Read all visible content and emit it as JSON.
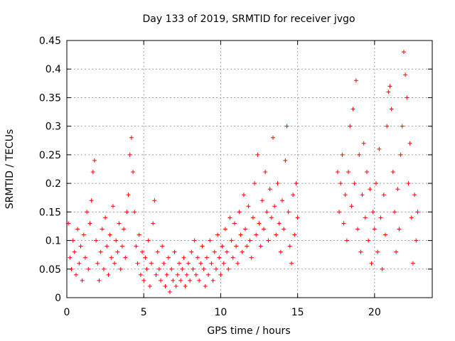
{
  "chart_data": {
    "type": "scatter",
    "title": "Day 133 of 2019, SRMTID for receiver jvgo",
    "xlabel": "GPS time / hours",
    "ylabel": "SRMTID / TECUs",
    "xlim": [
      0,
      23.75
    ],
    "ylim": [
      0,
      0.45
    ],
    "xticks": [
      0,
      5,
      10,
      15,
      20
    ],
    "yticks": [
      0,
      0.05,
      0.1,
      0.15,
      0.2,
      0.25,
      0.3,
      0.35,
      0.4,
      0.45
    ],
    "xtick_labels": [
      "0",
      "5",
      "10",
      "15",
      "20"
    ],
    "ytick_labels": [
      "0",
      "0.05",
      "0.1",
      "0.15",
      "0.2",
      "0.25",
      "0.3",
      "0.35",
      "0.4",
      "0.45"
    ],
    "grid": true,
    "marker": "+",
    "color": "#ff0000",
    "points": [
      [
        0.1,
        0.13
      ],
      [
        0.2,
        0.07
      ],
      [
        0.3,
        0.05
      ],
      [
        0.4,
        0.1
      ],
      [
        0.5,
        0.08
      ],
      [
        0.6,
        0.04
      ],
      [
        0.7,
        0.12
      ],
      [
        0.8,
        0.06
      ],
      [
        0.9,
        0.09
      ],
      [
        1.0,
        0.03
      ],
      [
        1.1,
        0.11
      ],
      [
        1.2,
        0.07
      ],
      [
        1.3,
        0.15
      ],
      [
        1.4,
        0.05
      ],
      [
        1.5,
        0.13
      ],
      [
        1.6,
        0.17
      ],
      [
        1.7,
        0.22
      ],
      [
        1.8,
        0.24
      ],
      [
        1.9,
        0.1
      ],
      [
        2.0,
        0.06
      ],
      [
        2.1,
        0.03
      ],
      [
        2.2,
        0.08
      ],
      [
        2.3,
        0.12
      ],
      [
        2.4,
        0.05
      ],
      [
        2.5,
        0.14
      ],
      [
        2.6,
        0.09
      ],
      [
        2.7,
        0.04
      ],
      [
        2.8,
        0.11
      ],
      [
        2.9,
        0.07
      ],
      [
        3.0,
        0.16
      ],
      [
        3.1,
        0.06
      ],
      [
        3.2,
        0.1
      ],
      [
        3.3,
        0.08
      ],
      [
        3.4,
        0.13
      ],
      [
        3.5,
        0.05
      ],
      [
        3.6,
        0.09
      ],
      [
        3.7,
        0.12
      ],
      [
        3.8,
        0.07
      ],
      [
        3.9,
        0.15
      ],
      [
        4.0,
        0.18
      ],
      [
        4.1,
        0.25
      ],
      [
        4.2,
        0.28
      ],
      [
        4.3,
        0.22
      ],
      [
        4.4,
        0.15
      ],
      [
        4.5,
        0.09
      ],
      [
        4.6,
        0.06
      ],
      [
        4.7,
        0.11
      ],
      [
        4.8,
        0.04
      ],
      [
        4.9,
        0.08
      ],
      [
        5.0,
        0.03
      ],
      [
        5.1,
        0.07
      ],
      [
        5.2,
        0.05
      ],
      [
        5.3,
        0.1
      ],
      [
        5.4,
        0.02
      ],
      [
        5.5,
        0.06
      ],
      [
        5.6,
        0.13
      ],
      [
        5.7,
        0.17
      ],
      [
        5.8,
        0.04
      ],
      [
        5.9,
        0.08
      ],
      [
        6.0,
        0.05
      ],
      [
        6.1,
        0.03
      ],
      [
        6.2,
        0.09
      ],
      [
        6.3,
        0.06
      ],
      [
        6.4,
        0.02
      ],
      [
        6.5,
        0.04
      ],
      [
        6.6,
        0.07
      ],
      [
        6.7,
        0.01
      ],
      [
        6.8,
        0.05
      ],
      [
        6.9,
        0.03
      ],
      [
        7.0,
        0.08
      ],
      [
        7.1,
        0.02
      ],
      [
        7.2,
        0.04
      ],
      [
        7.3,
        0.06
      ],
      [
        7.4,
        0.03
      ],
      [
        7.5,
        0.05
      ],
      [
        7.6,
        0.07
      ],
      [
        7.7,
        0.02
      ],
      [
        7.8,
        0.04
      ],
      [
        7.9,
        0.06
      ],
      [
        8.0,
        0.03
      ],
      [
        8.1,
        0.08
      ],
      [
        8.2,
        0.05
      ],
      [
        8.3,
        0.1
      ],
      [
        8.4,
        0.04
      ],
      [
        8.5,
        0.07
      ],
      [
        8.6,
        0.03
      ],
      [
        8.7,
        0.06
      ],
      [
        8.8,
        0.09
      ],
      [
        8.9,
        0.05
      ],
      [
        9.0,
        0.02
      ],
      [
        9.1,
        0.07
      ],
      [
        9.2,
        0.04
      ],
      [
        9.3,
        0.1
      ],
      [
        9.4,
        0.06
      ],
      [
        9.5,
        0.03
      ],
      [
        9.6,
        0.08
      ],
      [
        9.7,
        0.05
      ],
      [
        9.8,
        0.11
      ],
      [
        9.9,
        0.07
      ],
      [
        10.0,
        0.04
      ],
      [
        10.1,
        0.09
      ],
      [
        10.2,
        0.06
      ],
      [
        10.3,
        0.12
      ],
      [
        10.4,
        0.08
      ],
      [
        10.5,
        0.05
      ],
      [
        10.6,
        0.14
      ],
      [
        10.7,
        0.1
      ],
      [
        10.8,
        0.07
      ],
      [
        10.9,
        0.13
      ],
      [
        11.0,
        0.09
      ],
      [
        11.1,
        0.06
      ],
      [
        11.2,
        0.15
      ],
      [
        11.3,
        0.11
      ],
      [
        11.4,
        0.08
      ],
      [
        11.5,
        0.18
      ],
      [
        11.6,
        0.12
      ],
      [
        11.7,
        0.09
      ],
      [
        11.8,
        0.16
      ],
      [
        11.9,
        0.1
      ],
      [
        12.0,
        0.07
      ],
      [
        12.1,
        0.14
      ],
      [
        12.2,
        0.2
      ],
      [
        12.3,
        0.11
      ],
      [
        12.4,
        0.25
      ],
      [
        12.5,
        0.13
      ],
      [
        12.6,
        0.09
      ],
      [
        12.7,
        0.17
      ],
      [
        12.8,
        0.12
      ],
      [
        12.9,
        0.22
      ],
      [
        13.0,
        0.15
      ],
      [
        13.1,
        0.1
      ],
      [
        13.2,
        0.19
      ],
      [
        13.3,
        0.14
      ],
      [
        13.4,
        0.28
      ],
      [
        13.5,
        0.16
      ],
      [
        13.6,
        0.11
      ],
      [
        13.7,
        0.2
      ],
      [
        13.8,
        0.13
      ],
      [
        13.9,
        0.08
      ],
      [
        14.0,
        0.17
      ],
      [
        14.1,
        0.12
      ],
      [
        14.2,
        0.24
      ],
      [
        14.3,
        0.3
      ],
      [
        14.4,
        0.15
      ],
      [
        14.5,
        0.09
      ],
      [
        14.6,
        0.06
      ],
      [
        14.7,
        0.18
      ],
      [
        14.8,
        0.11
      ],
      [
        14.9,
        0.2
      ],
      [
        15.0,
        0.14
      ],
      [
        17.6,
        0.22
      ],
      [
        17.7,
        0.15
      ],
      [
        17.8,
        0.2
      ],
      [
        17.9,
        0.25
      ],
      [
        18.0,
        0.13
      ],
      [
        18.1,
        0.18
      ],
      [
        18.2,
        0.1
      ],
      [
        18.3,
        0.22
      ],
      [
        18.4,
        0.3
      ],
      [
        18.5,
        0.16
      ],
      [
        18.6,
        0.33
      ],
      [
        18.7,
        0.2
      ],
      [
        18.8,
        0.38
      ],
      [
        18.9,
        0.12
      ],
      [
        19.0,
        0.25
      ],
      [
        19.1,
        0.08
      ],
      [
        19.2,
        0.18
      ],
      [
        19.3,
        0.27
      ],
      [
        19.4,
        0.14
      ],
      [
        19.5,
        0.22
      ],
      [
        19.6,
        0.1
      ],
      [
        19.7,
        0.19
      ],
      [
        19.8,
        0.06
      ],
      [
        19.9,
        0.15
      ],
      [
        20.0,
        0.12
      ],
      [
        20.1,
        0.2
      ],
      [
        20.2,
        0.08
      ],
      [
        20.3,
        0.26
      ],
      [
        20.4,
        0.14
      ],
      [
        20.5,
        0.05
      ],
      [
        20.6,
        0.18
      ],
      [
        20.7,
        0.11
      ],
      [
        20.8,
        0.3
      ],
      [
        20.9,
        0.36
      ],
      [
        21.0,
        0.37
      ],
      [
        21.1,
        0.33
      ],
      [
        21.2,
        0.22
      ],
      [
        21.3,
        0.15
      ],
      [
        21.4,
        0.08
      ],
      [
        21.5,
        0.19
      ],
      [
        21.6,
        0.12
      ],
      [
        21.7,
        0.25
      ],
      [
        21.8,
        0.3
      ],
      [
        21.9,
        0.43
      ],
      [
        22.0,
        0.39
      ],
      [
        22.1,
        0.35
      ],
      [
        22.2,
        0.2
      ],
      [
        22.3,
        0.27
      ],
      [
        22.4,
        0.14
      ],
      [
        22.5,
        0.06
      ],
      [
        22.6,
        0.18
      ],
      [
        22.7,
        0.1
      ],
      [
        22.8,
        0.15
      ]
    ]
  }
}
